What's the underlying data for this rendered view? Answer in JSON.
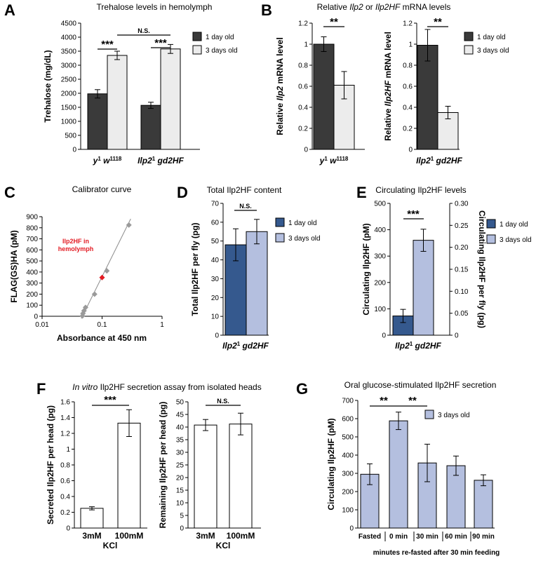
{
  "panels": {
    "A": {
      "letter": "A",
      "legend": [
        "1 day old",
        "3 days old"
      ],
      "sig": {
        "pair1": "***",
        "pair2": "***",
        "across": "N.S."
      }
    },
    "B": {
      "letter": "B",
      "legend": [
        "1 day old",
        "3 days old"
      ],
      "sig": {
        "left": "**",
        "right": "**"
      }
    },
    "C": {
      "letter": "C",
      "annotation": [
        "Ilp2HF in",
        "hemolymph"
      ]
    },
    "D": {
      "letter": "D",
      "legend": [
        "1 day old",
        "3 days old"
      ],
      "sig": "N.S."
    },
    "E": {
      "letter": "E",
      "legend": [
        "1 day old",
        "3 days old"
      ],
      "sig": "***"
    },
    "F": {
      "letter": "F",
      "sig": {
        "left": "***",
        "right": "N.S."
      }
    },
    "G": {
      "letter": "G",
      "legend": [
        "3 days old"
      ],
      "sig": [
        "**",
        "**"
      ]
    }
  },
  "colors": {
    "dark": "#3a3a3a",
    "light": "#ececec",
    "navy": "#35598e",
    "lavender": "#b4bfdf",
    "white": "#ffffff",
    "point": "#9a9a9a",
    "highlight": "#e31b23"
  },
  "chart_data": [
    {
      "id": "A",
      "type": "bar",
      "title": "Trehalose levels in hemolymph",
      "ylabel": "Trehalose (mg/dL)",
      "ylim": [
        0,
        4500
      ],
      "yticks": [
        0,
        500,
        1000,
        1500,
        2000,
        2500,
        3000,
        3500,
        4000,
        4500
      ],
      "categories": [
        "y1 w1118",
        "Ilp21 gd2HF"
      ],
      "series": [
        {
          "name": "1 day old",
          "values": [
            1980,
            1570
          ],
          "errors": [
            150,
            110
          ]
        },
        {
          "name": "3 days old",
          "values": [
            3350,
            3580
          ],
          "errors": [
            150,
            160
          ]
        }
      ]
    },
    {
      "id": "B1",
      "type": "bar",
      "title": "Relative Ilp2 or Ilp2HF mRNA levels",
      "ylabel": "Relative Ilp2 mRNA level",
      "ylim": [
        0,
        1.2
      ],
      "yticks": [
        0,
        0.2,
        0.4,
        0.6,
        0.8,
        1.0,
        1.2
      ],
      "categories": [
        "y1 w1118"
      ],
      "series": [
        {
          "name": "1 day old",
          "values": [
            1.0
          ],
          "errors": [
            0.07
          ]
        },
        {
          "name": "3 days old",
          "values": [
            0.61
          ],
          "errors": [
            0.13
          ]
        }
      ]
    },
    {
      "id": "B2",
      "type": "bar",
      "ylabel": "Relative Ilp2HF mRNA level",
      "ylim": [
        0,
        1.2
      ],
      "yticks": [
        0,
        0.2,
        0.4,
        0.6,
        0.8,
        1.0,
        1.2
      ],
      "categories": [
        "Ilp21 gd2HF"
      ],
      "series": [
        {
          "name": "1 day old",
          "values": [
            0.99
          ],
          "errors": [
            0.15
          ]
        },
        {
          "name": "3 days old",
          "values": [
            0.35
          ],
          "errors": [
            0.06
          ]
        }
      ]
    },
    {
      "id": "C",
      "type": "scatter",
      "title": "Calibrator curve",
      "xlabel": "Absorbance at 450 nm",
      "ylabel": "FLAG(GS)HA (pM)",
      "xscale": "log",
      "xlim": [
        0.01,
        1
      ],
      "xticks": [
        0.01,
        0.1,
        1
      ],
      "xticklabels": [
        "0.01",
        "0.1",
        "1"
      ],
      "ylim": [
        0,
        900
      ],
      "yticks": [
        0,
        100,
        200,
        300,
        400,
        500,
        600,
        700,
        800,
        900
      ],
      "points": [
        [
          0.047,
          3
        ],
        [
          0.048,
          25
        ],
        [
          0.05,
          50
        ],
        [
          0.053,
          80
        ],
        [
          0.075,
          200
        ],
        [
          0.12,
          410
        ],
        [
          0.28,
          825
        ]
      ],
      "highlight": [
        0.1,
        350
      ],
      "fit": [
        [
          0.045,
          -20
        ],
        [
          0.3,
          880
        ]
      ]
    },
    {
      "id": "D",
      "type": "bar",
      "title": "Total Ilp2HF content",
      "ylabel": "Total Ilp2HF per fly (pg)",
      "ylim": [
        0,
        70
      ],
      "yticks": [
        0,
        10,
        20,
        30,
        40,
        50,
        60,
        70
      ],
      "categories": [
        "Ilp21 gd2HF"
      ],
      "series": [
        {
          "name": "1 day old",
          "values": [
            48
          ],
          "errors": [
            8.5
          ]
        },
        {
          "name": "3 days old",
          "values": [
            55
          ],
          "errors": [
            6.5
          ]
        }
      ]
    },
    {
      "id": "E",
      "type": "bar",
      "title": "Circulating Ilp2HF levels",
      "ylabel": "Circulating Ilp2HF (pM)",
      "y2label": "Circulating Ilp2HF per fly (pg)",
      "ylim": [
        0,
        500
      ],
      "yticks": [
        0,
        100,
        200,
        300,
        400,
        500
      ],
      "y2lim": [
        0,
        0.3
      ],
      "y2ticks": [
        0,
        0.05,
        0.1,
        0.15,
        0.2,
        0.25,
        0.3
      ],
      "y2ticklabels": [
        "0",
        "0.05",
        "0.10",
        "0.15",
        "0.20",
        "0.25",
        "0.30"
      ],
      "categories": [
        "Ilp21 gd2HF"
      ],
      "series": [
        {
          "name": "1 day old",
          "values": [
            73
          ],
          "errors": [
            25
          ]
        },
        {
          "name": "3 days old",
          "values": [
            360
          ],
          "errors": [
            42
          ]
        }
      ]
    },
    {
      "id": "F1",
      "type": "bar",
      "title": "In vitro Ilp2HF secretion assay from isolated heads",
      "ylabel": "Secreted Ilp2HF per head (pg)",
      "xlabel": "KCl",
      "ylim": [
        0,
        1.6
      ],
      "yticks": [
        0,
        0.2,
        0.4,
        0.6,
        0.8,
        1.0,
        1.2,
        1.4,
        1.6
      ],
      "categories": [
        "3mM",
        "100mM"
      ],
      "values": [
        0.25,
        1.33
      ],
      "errors": [
        0.02,
        0.17
      ]
    },
    {
      "id": "F2",
      "type": "bar",
      "ylabel": "Remaining Ilp2HF per head (pg)",
      "xlabel": "KCl",
      "ylim": [
        0,
        50
      ],
      "yticks": [
        0,
        5,
        10,
        15,
        20,
        25,
        30,
        35,
        40,
        45,
        50
      ],
      "categories": [
        "3mM",
        "100mM"
      ],
      "values": [
        40.8,
        41.2
      ],
      "errors": [
        2.2,
        4.3
      ]
    },
    {
      "id": "G",
      "type": "bar",
      "title": "Oral glucose-stimulated Ilp2HF secretion",
      "ylabel": "Circulating Ilp2HF (pM)",
      "xlabel": "minutes re-fasted after 30 min feeding",
      "ylim": [
        0,
        700
      ],
      "yticks": [
        0,
        100,
        200,
        300,
        400,
        500,
        600,
        700
      ],
      "categories": [
        "Fasted",
        "0 min",
        "30 min",
        "60 min",
        "90 min"
      ],
      "series": [
        {
          "name": "3 days old",
          "values": [
            295,
            588,
            357,
            342,
            262
          ],
          "errors": [
            57,
            48,
            103,
            53,
            30
          ]
        }
      ]
    }
  ]
}
